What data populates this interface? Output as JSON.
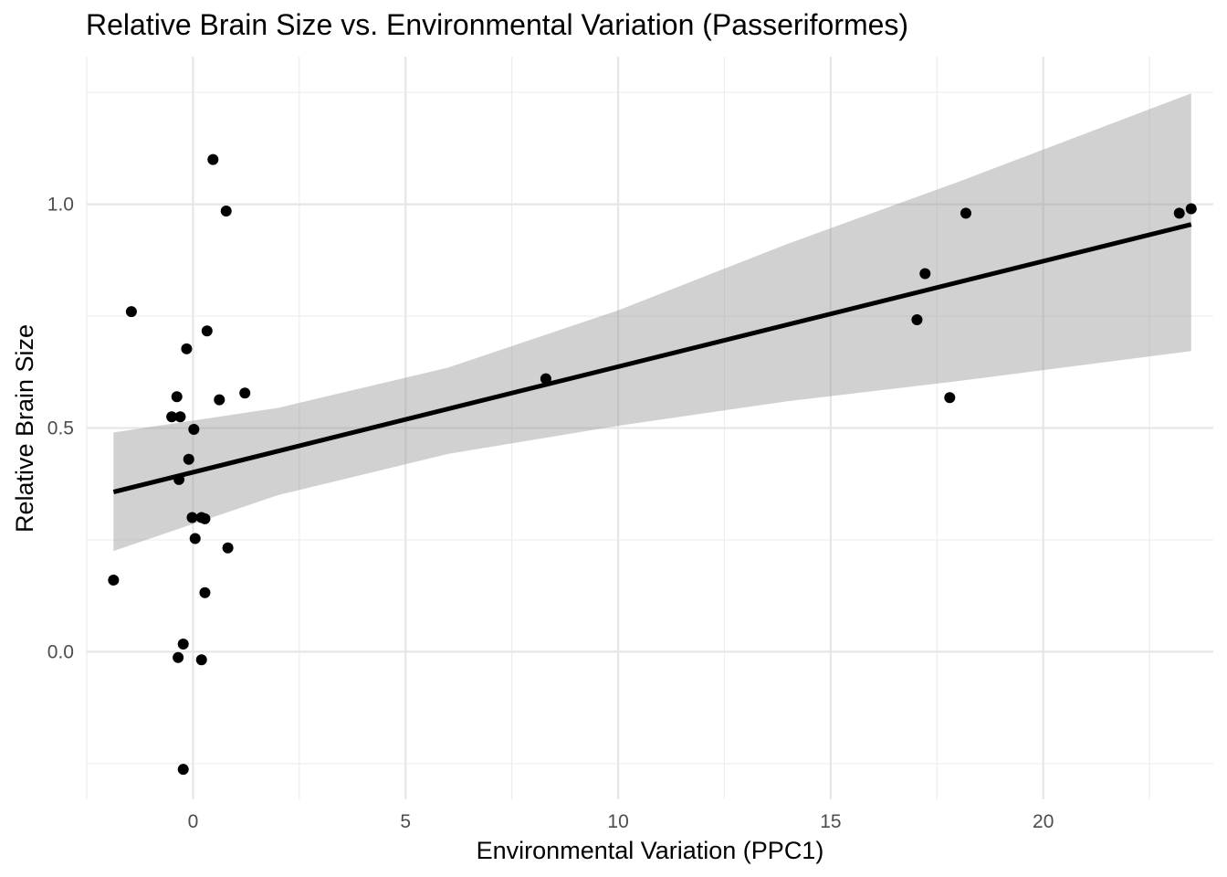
{
  "chart_data": {
    "type": "scatter",
    "title": "Relative Brain Size vs. Environmental Variation (Passeriformes)",
    "xlabel": "Environmental Variation (PPC1)",
    "ylabel": "Relative Brain Size",
    "xlim": [
      -2.5,
      24.0
    ],
    "ylim": [
      -0.33,
      1.33
    ],
    "x_ticks": [
      0,
      5,
      10,
      15,
      20
    ],
    "x_tick_labels": [
      "0",
      "5",
      "10",
      "15",
      "20"
    ],
    "y_ticks": [
      0.0,
      0.5,
      1.0
    ],
    "y_tick_labels": [
      "0.0",
      "0.5",
      "1.0"
    ],
    "x_minor_ticks": [
      -2.5,
      2.5,
      7.5,
      12.5,
      17.5,
      22.5
    ],
    "y_minor_ticks": [
      -0.25,
      0.25,
      0.75,
      1.25
    ],
    "grid": true,
    "legend": "none",
    "colors": {
      "points": "#000000",
      "fit_line": "#000000",
      "confidence_band": "#999999",
      "grid": "#e6e6e6",
      "tick_label": "#4d4d4d"
    },
    "points": [
      {
        "x": -1.87,
        "y": 0.16
      },
      {
        "x": -1.45,
        "y": 0.76
      },
      {
        "x": -0.5,
        "y": 0.525
      },
      {
        "x": -0.38,
        "y": 0.57
      },
      {
        "x": -0.3,
        "y": 0.525
      },
      {
        "x": -0.33,
        "y": 0.385
      },
      {
        "x": -0.35,
        "y": -0.013
      },
      {
        "x": -0.23,
        "y": 0.017
      },
      {
        "x": -0.23,
        "y": -0.263
      },
      {
        "x": -0.15,
        "y": 0.677
      },
      {
        "x": -0.1,
        "y": 0.43
      },
      {
        "x": -0.02,
        "y": 0.3
      },
      {
        "x": 0.02,
        "y": 0.497
      },
      {
        "x": 0.05,
        "y": 0.253
      },
      {
        "x": 0.2,
        "y": 0.3
      },
      {
        "x": 0.2,
        "y": -0.018
      },
      {
        "x": 0.28,
        "y": 0.297
      },
      {
        "x": 0.28,
        "y": 0.132
      },
      {
        "x": 0.33,
        "y": 0.717
      },
      {
        "x": 0.47,
        "y": 1.1
      },
      {
        "x": 0.62,
        "y": 0.563
      },
      {
        "x": 0.78,
        "y": 0.985
      },
      {
        "x": 0.82,
        "y": 0.232
      },
      {
        "x": 1.22,
        "y": 0.578
      },
      {
        "x": 8.3,
        "y": 0.61
      },
      {
        "x": 17.03,
        "y": 0.742
      },
      {
        "x": 17.22,
        "y": 0.845
      },
      {
        "x": 17.8,
        "y": 0.568
      },
      {
        "x": 18.18,
        "y": 0.98
      },
      {
        "x": 23.2,
        "y": 0.98
      },
      {
        "x": 23.48,
        "y": 0.99
      }
    ],
    "fit_line": {
      "x": [
        -1.87,
        23.48
      ],
      "y": [
        0.357,
        0.955
      ]
    },
    "confidence_band": {
      "x": [
        -1.87,
        2.0,
        6.0,
        10.0,
        14.0,
        18.0,
        23.48
      ],
      "lower": [
        0.225,
        0.35,
        0.442,
        0.505,
        0.56,
        0.605,
        0.672
      ],
      "upper": [
        0.49,
        0.545,
        0.635,
        0.763,
        0.912,
        1.05,
        1.248
      ]
    }
  }
}
